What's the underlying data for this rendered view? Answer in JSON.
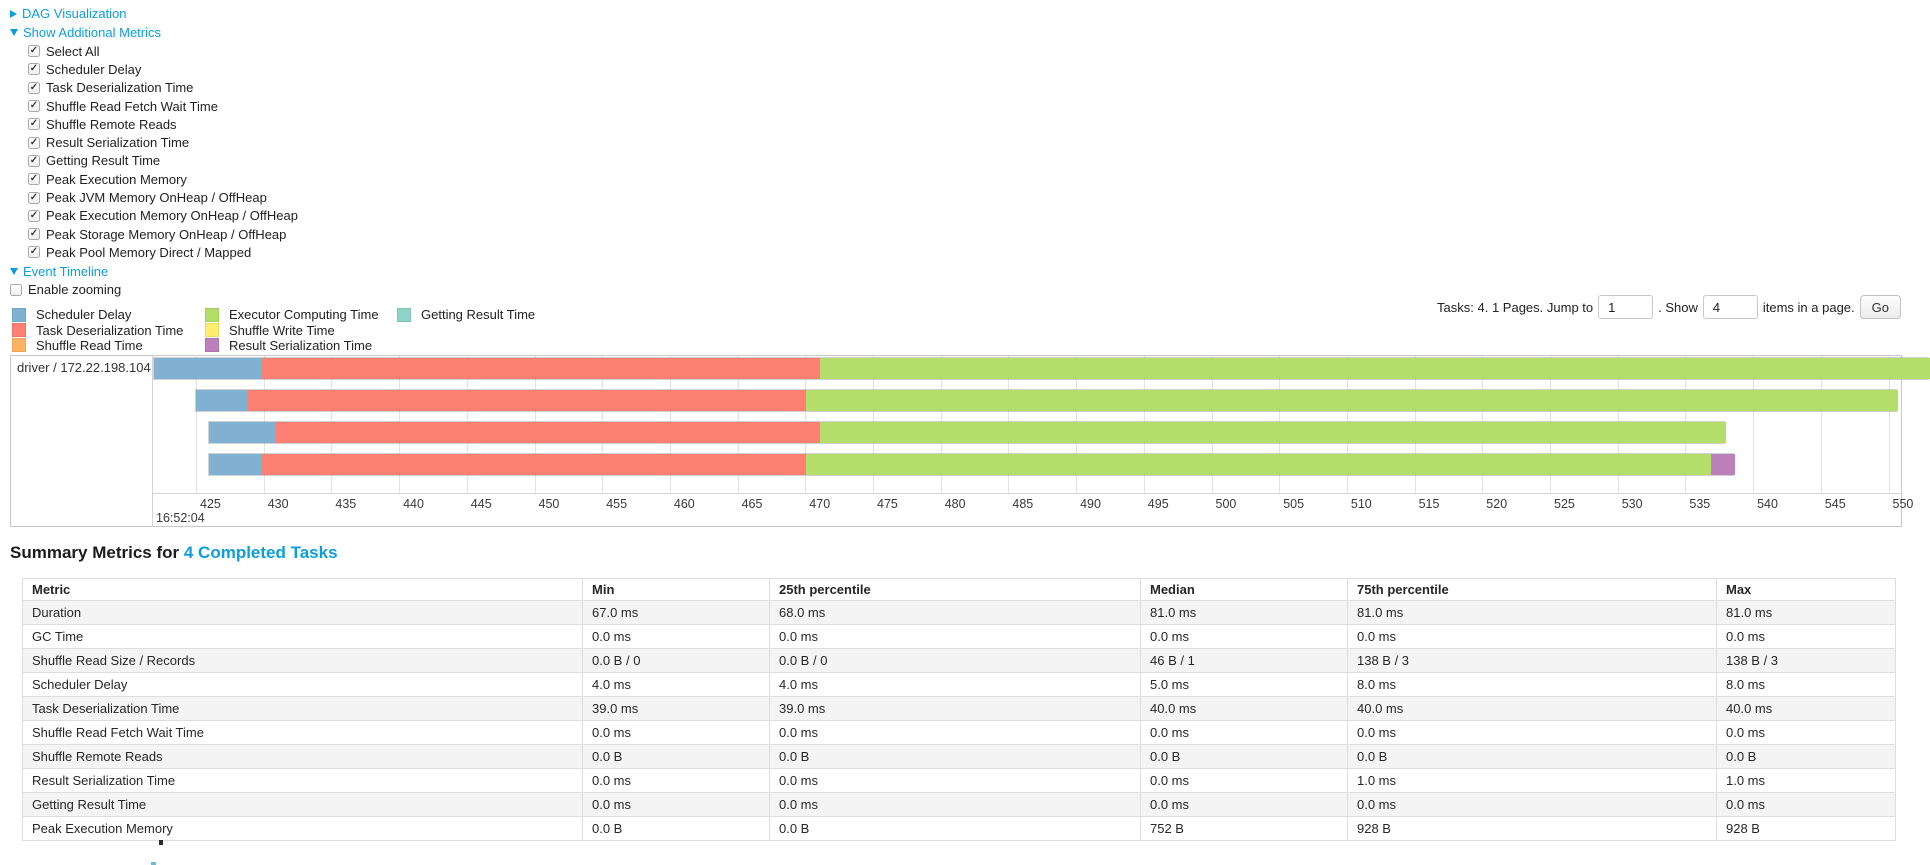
{
  "colors": {
    "link": "#0d9ed9",
    "scheduler_delay": "#80B1D3",
    "task_deserialization": "#FB8072",
    "shuffle_read": "#FDB462",
    "executor_computing": "#B3DE69",
    "shuffle_write": "#FFED6F",
    "result_serialization": "#BC80BD",
    "getting_result": "#8DD3C7"
  },
  "toggles": {
    "dag": {
      "label": "DAG Visualization",
      "state": "collapsed"
    },
    "metrics": {
      "label": "Show Additional Metrics",
      "state": "expanded"
    },
    "timeline": {
      "label": "Event Timeline",
      "state": "expanded"
    }
  },
  "metric_checkboxes": [
    {
      "label": "Select All",
      "checked": true
    },
    {
      "label": "Scheduler Delay",
      "checked": true
    },
    {
      "label": "Task Deserialization Time",
      "checked": true
    },
    {
      "label": "Shuffle Read Fetch Wait Time",
      "checked": true
    },
    {
      "label": "Shuffle Remote Reads",
      "checked": true
    },
    {
      "label": "Result Serialization Time",
      "checked": true
    },
    {
      "label": "Getting Result Time",
      "checked": true
    },
    {
      "label": "Peak Execution Memory",
      "checked": true
    },
    {
      "label": "Peak JVM Memory OnHeap / OffHeap",
      "checked": true
    },
    {
      "label": "Peak Execution Memory OnHeap / OffHeap",
      "checked": true
    },
    {
      "label": "Peak Storage Memory OnHeap / OffHeap",
      "checked": true
    },
    {
      "label": "Peak Pool Memory Direct / Mapped",
      "checked": true
    }
  ],
  "enable_zooming": {
    "label": "Enable zooming",
    "checked": false
  },
  "legend_columns": [
    [
      {
        "label": "Scheduler Delay",
        "color": "scheduler_delay"
      },
      {
        "label": "Task Deserialization Time",
        "color": "task_deserialization"
      },
      {
        "label": "Shuffle Read Time",
        "color": "shuffle_read"
      }
    ],
    [
      {
        "label": "Executor Computing Time",
        "color": "executor_computing"
      },
      {
        "label": "Shuffle Write Time",
        "color": "shuffle_write"
      },
      {
        "label": "Result Serialization Time",
        "color": "result_serialization"
      }
    ],
    [
      {
        "label": "Getting Result Time",
        "color": "getting_result"
      }
    ]
  ],
  "pagination": {
    "prefix": "Tasks: 4. 1 Pages. Jump to",
    "jump_value": "1",
    "mid": ". Show",
    "show_value": "4",
    "suffix": "items in a page.",
    "go_label": "Go"
  },
  "chart_data": {
    "type": "timeline",
    "group_label": "driver / 172.22.198.104",
    "x_axis": {
      "tick_start": 425,
      "tick_end": 550,
      "tick_step": 5,
      "time_anchor": "16:52:04"
    },
    "tasks": [
      {
        "segments": [
          {
            "type": "scheduler_delay",
            "start": 421.8,
            "end": 429.8
          },
          {
            "type": "task_deserialization",
            "start": 429.8,
            "end": 471.0
          },
          {
            "type": "executor_computing",
            "start": 471.0,
            "end": 553.0
          }
        ]
      },
      {
        "segments": [
          {
            "type": "scheduler_delay",
            "start": 424.9,
            "end": 428.8
          },
          {
            "type": "task_deserialization",
            "start": 428.8,
            "end": 470.0
          },
          {
            "type": "executor_computing",
            "start": 470.0,
            "end": 550.6
          }
        ]
      },
      {
        "segments": [
          {
            "type": "scheduler_delay",
            "start": 425.9,
            "end": 430.8
          },
          {
            "type": "task_deserialization",
            "start": 430.8,
            "end": 471.0
          },
          {
            "type": "executor_computing",
            "start": 471.0,
            "end": 537.9
          }
        ]
      },
      {
        "segments": [
          {
            "type": "scheduler_delay",
            "start": 425.9,
            "end": 429.8
          },
          {
            "type": "task_deserialization",
            "start": 429.8,
            "end": 470.0
          },
          {
            "type": "executor_computing",
            "start": 470.0,
            "end": 536.8
          },
          {
            "type": "result_serialization",
            "start": 536.8,
            "end": 538.6
          }
        ]
      }
    ]
  },
  "summary": {
    "title_prefix": "Summary Metrics for",
    "title_link": "4 Completed Tasks",
    "columns": [
      "Metric",
      "Min",
      "25th percentile",
      "Median",
      "75th percentile",
      "Max"
    ],
    "rows": [
      {
        "metric": "Duration",
        "values": [
          "67.0 ms",
          "68.0 ms",
          "81.0 ms",
          "81.0 ms",
          "81.0 ms"
        ]
      },
      {
        "metric": "GC Time",
        "values": [
          "0.0 ms",
          "0.0 ms",
          "0.0 ms",
          "0.0 ms",
          "0.0 ms"
        ]
      },
      {
        "metric": "Shuffle Read Size / Records",
        "values": [
          "0.0 B / 0",
          "0.0 B / 0",
          "46 B / 1",
          "138 B / 3",
          "138 B / 3"
        ]
      },
      {
        "metric": "Scheduler Delay",
        "values": [
          "4.0 ms",
          "4.0 ms",
          "5.0 ms",
          "8.0 ms",
          "8.0 ms"
        ]
      },
      {
        "metric": "Task Deserialization Time",
        "values": [
          "39.0 ms",
          "39.0 ms",
          "40.0 ms",
          "40.0 ms",
          "40.0 ms"
        ]
      },
      {
        "metric": "Shuffle Read Fetch Wait Time",
        "values": [
          "0.0 ms",
          "0.0 ms",
          "0.0 ms",
          "0.0 ms",
          "0.0 ms"
        ]
      },
      {
        "metric": "Shuffle Remote Reads",
        "values": [
          "0.0 B",
          "0.0 B",
          "0.0 B",
          "0.0 B",
          "0.0 B"
        ]
      },
      {
        "metric": "Result Serialization Time",
        "values": [
          "0.0 ms",
          "0.0 ms",
          "0.0 ms",
          "1.0 ms",
          "1.0 ms"
        ]
      },
      {
        "metric": "Getting Result Time",
        "values": [
          "0.0 ms",
          "0.0 ms",
          "0.0 ms",
          "0.0 ms",
          "0.0 ms"
        ]
      },
      {
        "metric": "Peak Execution Memory",
        "values": [
          "0.0 B",
          "0.0 B",
          "752 B",
          "928 B",
          "928 B"
        ]
      }
    ]
  }
}
